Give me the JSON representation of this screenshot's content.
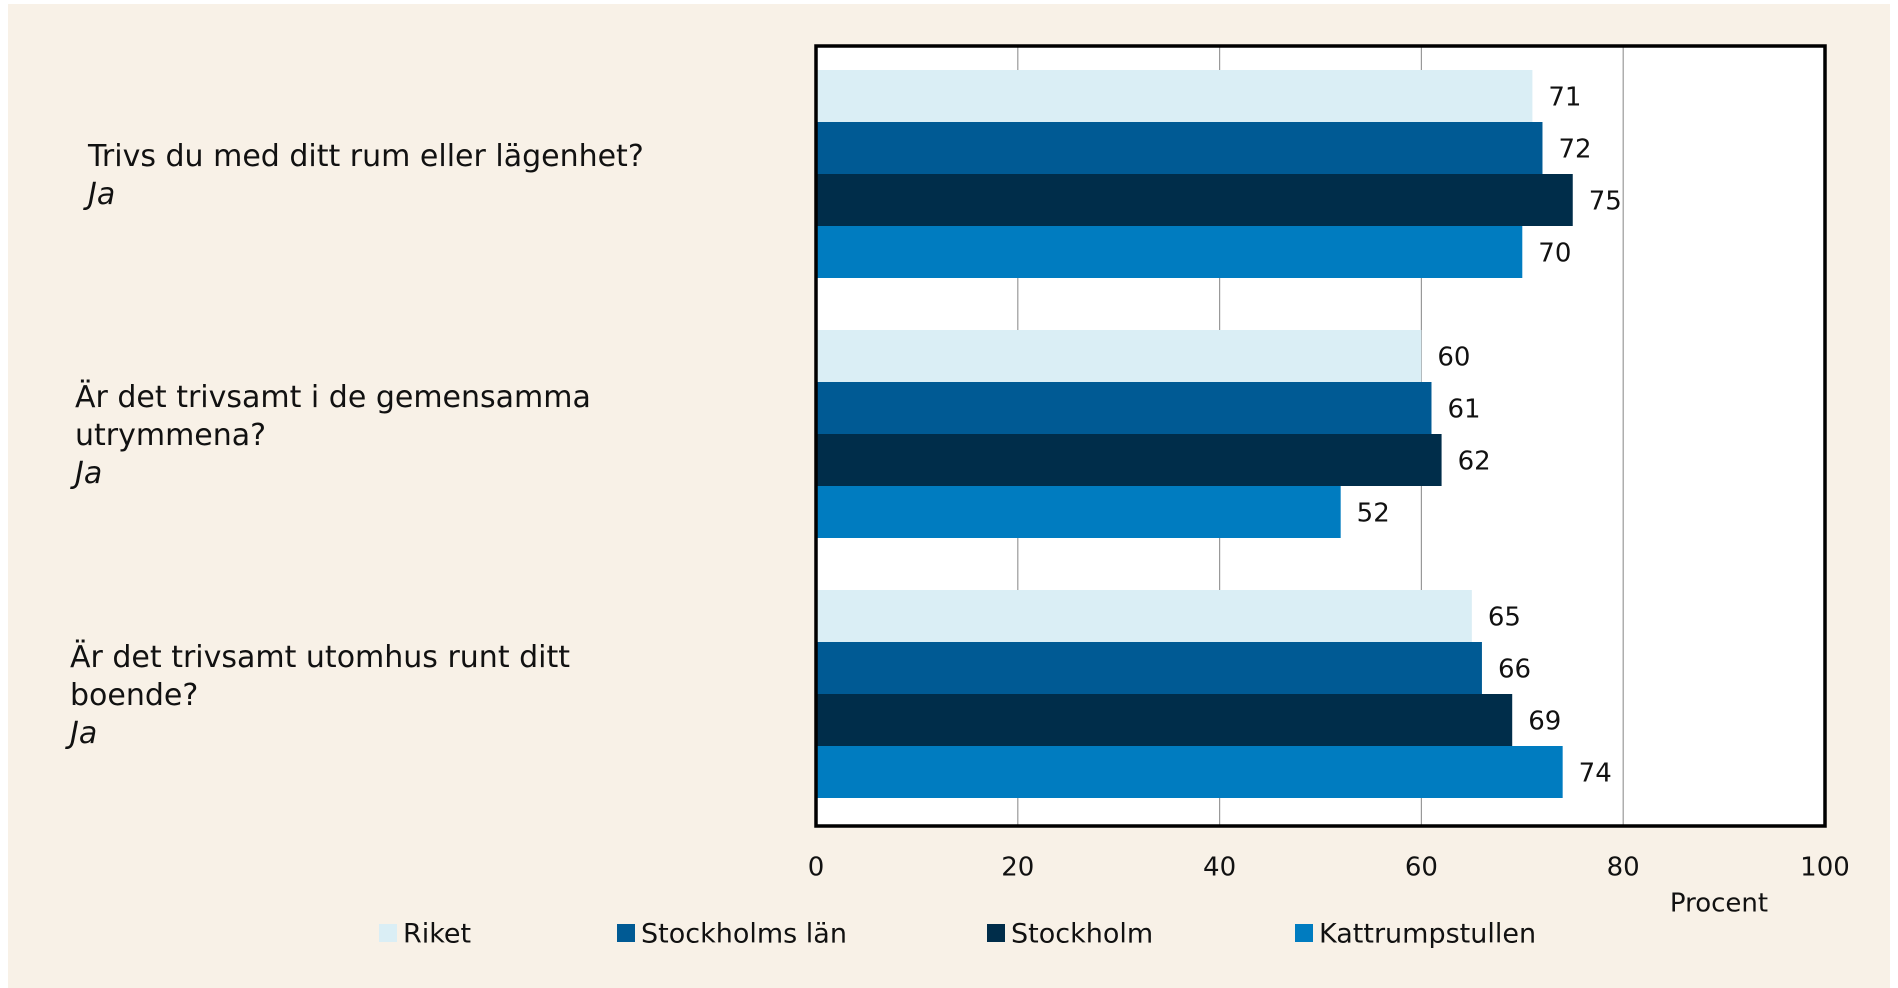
{
  "chart_data": {
    "type": "hbar",
    "categories": [
      "Trivs du med ditt rum eller lägenhet?",
      "Är det trivsamt i de gemensamma utrymmena?",
      "Är det trivsamt utomhus runt ditt boende?"
    ],
    "category_answers": [
      "Ja",
      "Ja",
      "Ja"
    ],
    "series": [
      {
        "name": "Riket",
        "color": "#daeef5",
        "values": [
          71,
          60,
          65
        ]
      },
      {
        "name": "Stockholms län",
        "color": "#005a94",
        "values": [
          72,
          61,
          66
        ]
      },
      {
        "name": "Stockholm",
        "color": "#002d4a",
        "values": [
          75,
          62,
          69
        ]
      },
      {
        "name": "Kattrumpstullen",
        "color": "#007cc0",
        "values": [
          70,
          52,
          74
        ]
      }
    ],
    "xlim": [
      0,
      100
    ],
    "xticks": [
      0,
      20,
      40,
      60,
      80,
      100
    ],
    "xlabel": "Procent",
    "grid": true
  }
}
